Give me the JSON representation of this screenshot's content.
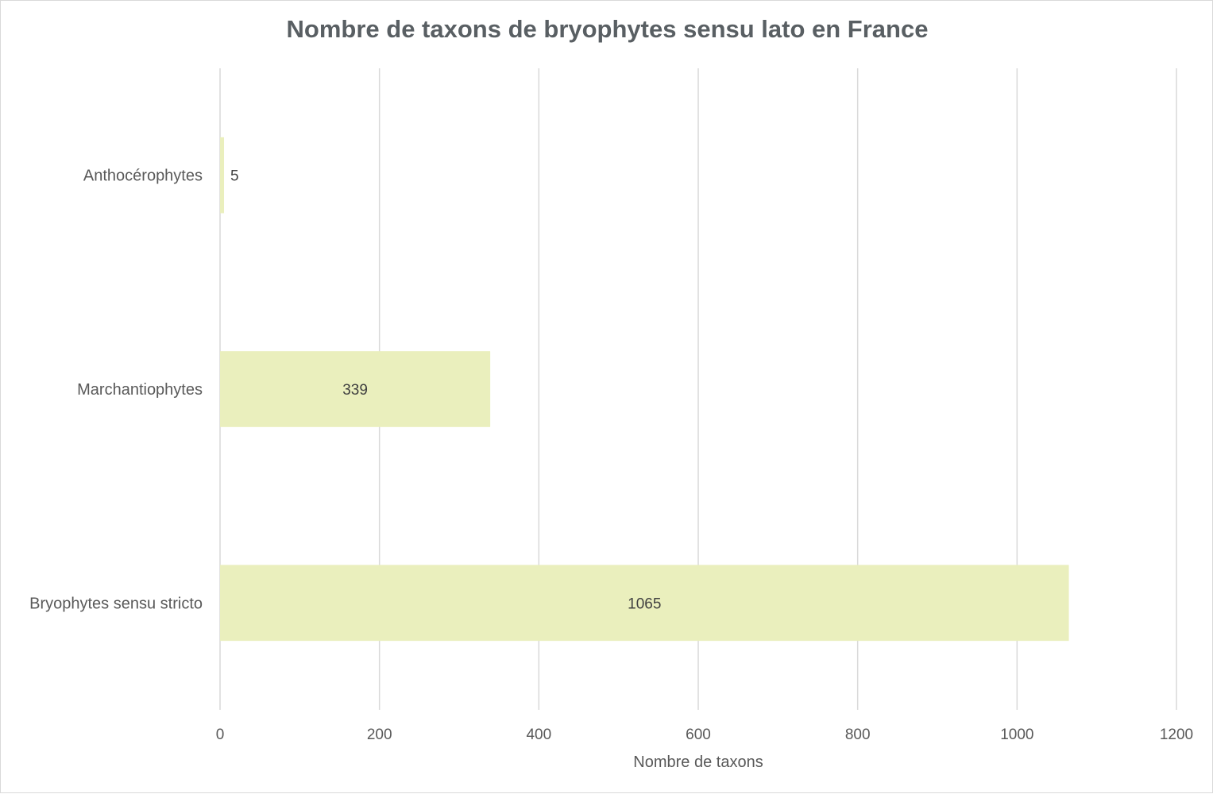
{
  "chart_data": {
    "type": "bar",
    "orientation": "horizontal",
    "title": "Nombre de taxons de bryophytes sensu lato en France",
    "xlabel": "Nombre de taxons",
    "ylabel": "",
    "categories": [
      "Anthocérophytes",
      "Marchantiophytes",
      "Bryophytes sensu stricto"
    ],
    "values": [
      5,
      339,
      1065
    ],
    "xlim": [
      0,
      1200
    ],
    "xticks": [
      "0",
      "200",
      "400",
      "600",
      "800",
      "1000",
      "1200"
    ],
    "grid": true,
    "legend": "none",
    "bar_color": "#eaefbd",
    "data_labels": true
  }
}
